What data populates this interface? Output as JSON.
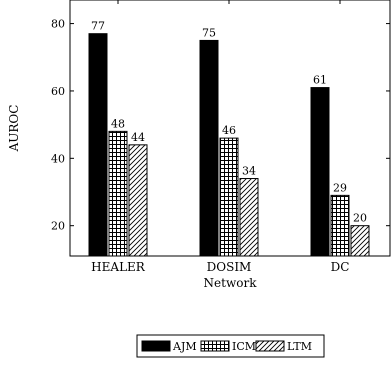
{
  "chart_data": {
    "type": "bar",
    "categories": [
      "HEALER",
      "DOSIM",
      "DC"
    ],
    "series": [
      {
        "name": "AJM",
        "values": [
          77,
          75,
          61
        ],
        "pattern": "solid"
      },
      {
        "name": "ICM",
        "values": [
          48,
          46,
          29
        ],
        "pattern": "grid"
      },
      {
        "name": "LTM",
        "values": [
          44,
          34,
          20
        ],
        "pattern": "hatch"
      }
    ],
    "xlabel": "Network",
    "ylabel": "AUROC",
    "ylim": [
      11,
      87
    ],
    "yticks": [
      20,
      40,
      60,
      80
    ],
    "grid": false,
    "legend": "bottom-center",
    "colors": {
      "bar": "#000000",
      "background": "#ffffff"
    }
  }
}
